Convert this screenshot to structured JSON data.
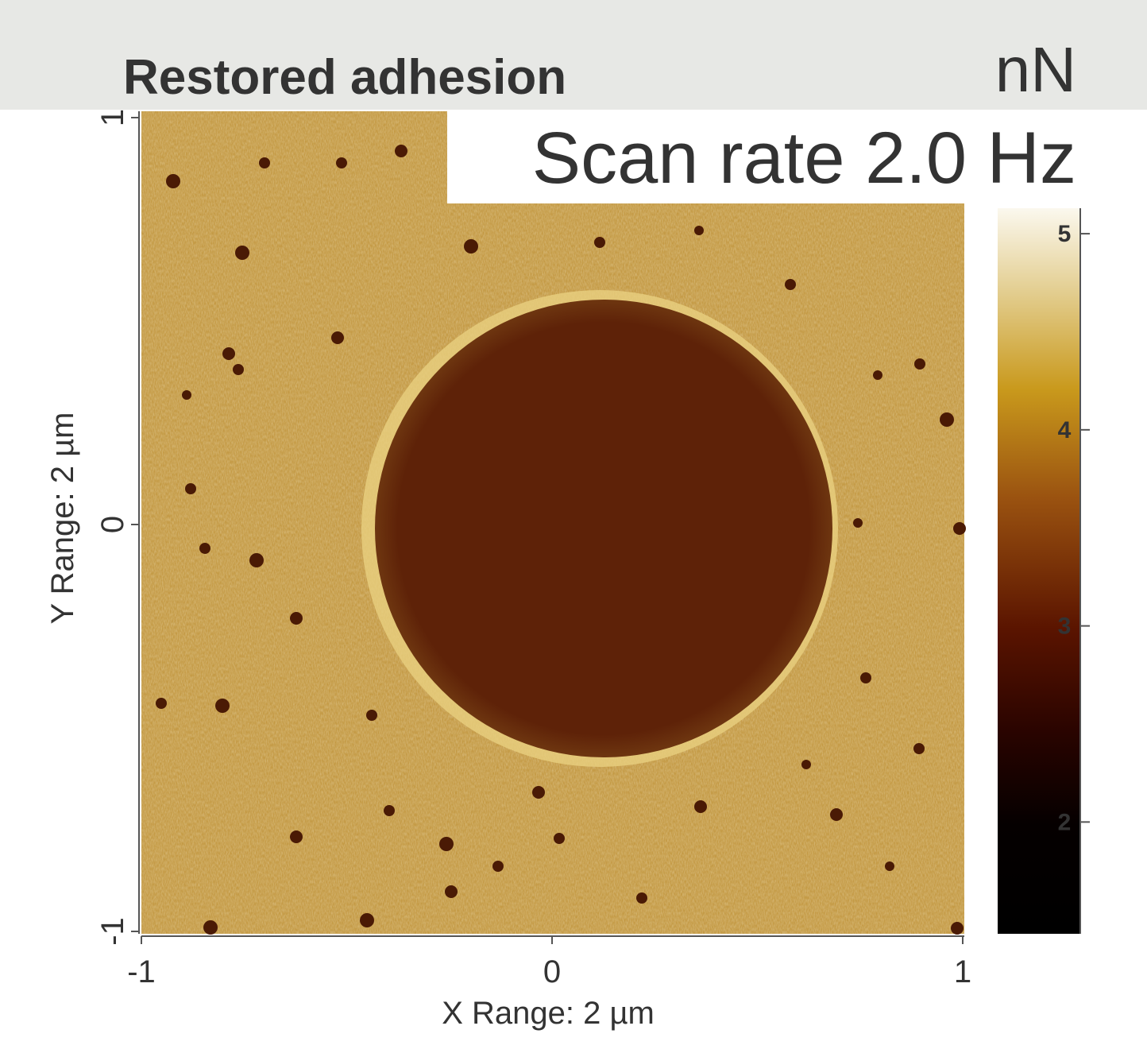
{
  "chart_data": {
    "type": "afm-map",
    "title": "Restored adhesion",
    "unit": "nN",
    "annotation": "Scan rate 2.0 Hz",
    "x_label": "X Range: 2 µm",
    "y_label": "Y Range: 2 µm",
    "xlim": [
      -1,
      1
    ],
    "xticks": [
      -1,
      0,
      1
    ],
    "ylim": [
      -1,
      1
    ],
    "yticks": [
      -1,
      0,
      1
    ],
    "colorbar_lim": [
      1.43,
      5.13
    ],
    "colorbar_ticks": [
      2,
      3,
      4,
      5
    ]
  }
}
